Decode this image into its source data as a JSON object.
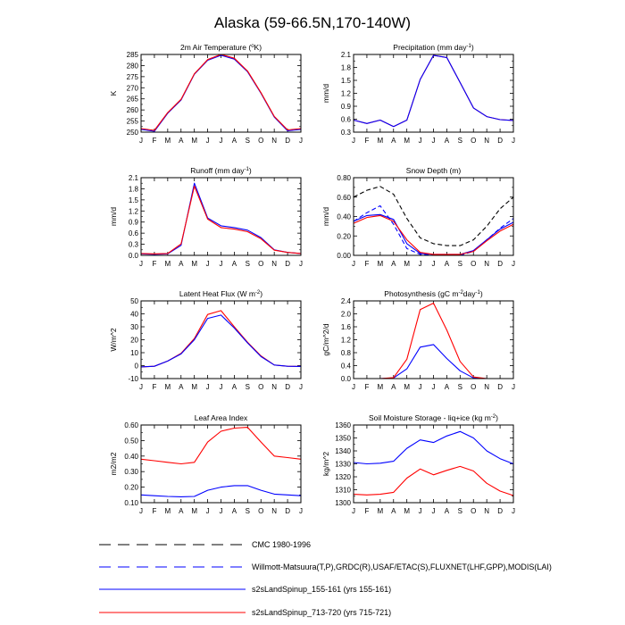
{
  "main_title": "Alaska (59-66.5N,170-140W)",
  "months": [
    "J",
    "F",
    "M",
    "A",
    "M",
    "J",
    "J",
    "A",
    "S",
    "O",
    "N",
    "D",
    "J"
  ],
  "legend": [
    {
      "label": "CMC 1980-1996",
      "color": "#000000",
      "style": "dashed"
    },
    {
      "label": "Willmott-Matsuura(T,P),GRDC(R),USAF/ETAC(S),FLUXNET(LHF,GPP),MODIS(LAI)",
      "color": "#0000ff",
      "style": "dashed"
    },
    {
      "label": "s2sLandSpinup_155-161 (yrs 155-161)",
      "color": "#0000ff",
      "style": "solid"
    },
    {
      "label": "s2sLandSpinup_713-720 (yrs 715-721)",
      "color": "#ff0000",
      "style": "solid"
    }
  ],
  "chart_data": [
    {
      "type": "line",
      "title": "2m Air Temperature (",
      "title_sup": "o",
      "title_tail": "K)",
      "ylabel": "K",
      "ylim": [
        250,
        285
      ],
      "yticks": [
        250,
        255,
        260,
        265,
        270,
        275,
        280,
        285
      ],
      "ytick_labels": [
        "250",
        "255",
        "260",
        "265",
        "270",
        "275",
        "280",
        "285"
      ],
      "series": [
        {
          "name": "s2sLandSpinup_155-161",
          "color": "#0000ff",
          "dash": "",
          "values": [
            251.2,
            250.4,
            258.5,
            264.5,
            276.1,
            282.4,
            284.6,
            282.9,
            277.2,
            267.5,
            256.8,
            250.6,
            251.2
          ]
        },
        {
          "name": "s2sLandSpinup_713-720",
          "color": "#ff0000",
          "dash": "",
          "values": [
            251.6,
            250.8,
            258.8,
            264.8,
            276.3,
            282.7,
            285.0,
            283.3,
            277.5,
            267.8,
            257.1,
            251.0,
            251.6
          ]
        }
      ]
    },
    {
      "type": "line",
      "title": "Precipitation (mm day",
      "title_sup": "-1",
      "title_tail": ")",
      "ylabel": "mm/d",
      "ylim": [
        0.3,
        2.1
      ],
      "yticks": [
        0.3,
        0.6,
        0.9,
        1.2,
        1.5,
        1.8,
        2.1
      ],
      "ytick_labels": [
        "0.3",
        "0.6",
        "0.9",
        "1.2",
        "1.5",
        "1.8",
        "2.1"
      ],
      "series": [
        {
          "name": "s2sLandSpinup_713-720",
          "color": "#ff0000",
          "dash": "",
          "values": [
            0.58,
            0.5,
            0.58,
            0.43,
            0.58,
            1.52,
            2.08,
            2.03,
            1.45,
            0.86,
            0.66,
            0.59,
            0.57
          ]
        },
        {
          "name": "s2sLandSpinup_155-161",
          "color": "#0000ff",
          "dash": "",
          "values": [
            0.58,
            0.5,
            0.58,
            0.43,
            0.58,
            1.52,
            2.08,
            2.03,
            1.45,
            0.86,
            0.66,
            0.59,
            0.57
          ]
        }
      ]
    },
    {
      "type": "line",
      "title": "Runoff (mm day",
      "title_sup": "-1",
      "title_tail": ")",
      "ylabel": "mm/d",
      "ylim": [
        0,
        2.1
      ],
      "yticks": [
        0,
        0.3,
        0.6,
        0.9,
        1.2,
        1.5,
        1.8,
        2.1
      ],
      "ytick_labels": [
        "0.0",
        "0.3",
        "0.6",
        "0.9",
        "1.2",
        "1.5",
        "1.8",
        "2.1"
      ],
      "series": [
        {
          "name": "s2sLandSpinup_155-161",
          "color": "#0000ff",
          "dash": "",
          "values": [
            0.04,
            0.03,
            0.04,
            0.27,
            1.95,
            1.01,
            0.8,
            0.75,
            0.68,
            0.48,
            0.15,
            0.08,
            0.05
          ]
        },
        {
          "name": "s2sLandSpinup_713-720",
          "color": "#ff0000",
          "dash": "",
          "values": [
            0.05,
            0.04,
            0.05,
            0.31,
            1.87,
            0.98,
            0.75,
            0.71,
            0.64,
            0.45,
            0.14,
            0.08,
            0.05
          ]
        }
      ]
    },
    {
      "type": "line",
      "title": "Snow Depth (m)",
      "title_sup": "",
      "title_tail": "",
      "ylabel": "mm/d",
      "ylim": [
        0,
        0.8
      ],
      "yticks": [
        0,
        0.2,
        0.4,
        0.6,
        0.8
      ],
      "ytick_labels": [
        "0.00",
        "0.20",
        "0.40",
        "0.60",
        "0.80"
      ],
      "series": [
        {
          "name": "CMC 1980-1996",
          "color": "#000000",
          "dash": "5,3",
          "values": [
            0.6,
            0.67,
            0.71,
            0.63,
            0.38,
            0.18,
            0.12,
            0.1,
            0.1,
            0.16,
            0.3,
            0.48,
            0.6
          ]
        },
        {
          "name": "Willmott-Matsuura",
          "color": "#0000ff",
          "dash": "5,3",
          "values": [
            0.35,
            0.44,
            0.51,
            0.32,
            0.07,
            0.01,
            0.0,
            0.0,
            0.0,
            0.04,
            0.16,
            0.28,
            0.38
          ]
        },
        {
          "name": "s2sLandSpinup_155-161",
          "color": "#0000ff",
          "dash": "",
          "values": [
            0.35,
            0.41,
            0.42,
            0.37,
            0.12,
            0.02,
            0.01,
            0.01,
            0.01,
            0.05,
            0.16,
            0.27,
            0.34
          ]
        },
        {
          "name": "s2sLandSpinup_713-720",
          "color": "#ff0000",
          "dash": "",
          "values": [
            0.33,
            0.39,
            0.41,
            0.35,
            0.16,
            0.03,
            0.01,
            0.01,
            0.01,
            0.04,
            0.15,
            0.25,
            0.32
          ]
        }
      ]
    },
    {
      "type": "line",
      "title": "Latent Heat Flux (W m",
      "title_sup": "-2",
      "title_tail": ")",
      "ylabel": "W/m^2",
      "ylim": [
        -10,
        50
      ],
      "yticks": [
        -10,
        0,
        10,
        20,
        30,
        40,
        50
      ],
      "ytick_labels": [
        "-10",
        "0",
        "10",
        "20",
        "30",
        "40",
        "50"
      ],
      "series": [
        {
          "name": "s2sLandSpinup_713-720",
          "color": "#ff0000",
          "dash": "",
          "values": [
            -1,
            -0.5,
            3.5,
            9.5,
            21,
            39.5,
            42.5,
            30,
            18,
            7.5,
            0.5,
            -0.5,
            -0.6
          ]
        },
        {
          "name": "s2sLandSpinup_155-161",
          "color": "#0000ff",
          "dash": "",
          "values": [
            -1,
            -0.5,
            3.5,
            9,
            20,
            36.5,
            39,
            29,
            17.5,
            7,
            0.5,
            -0.5,
            -0.6
          ]
        }
      ]
    },
    {
      "type": "line",
      "title": "Photosynthesis (gC m",
      "title_sup": "-2",
      "title_tail": "day",
      "title_sup2": "-1",
      "title_tail2": ")",
      "ylabel": "gC/m^2/d",
      "ylim": [
        0,
        2.4
      ],
      "yticks": [
        0,
        0.4,
        0.8,
        1.2,
        1.6,
        2.0,
        2.4
      ],
      "ytick_labels": [
        "0.0",
        "0.4",
        "0.8",
        "1.2",
        "1.6",
        "2.0",
        "2.4"
      ],
      "series": [
        {
          "name": "s2sLandSpinup_155-161",
          "color": "#0000ff",
          "dash": "",
          "values": [
            0,
            0,
            0,
            0.02,
            0.3,
            0.97,
            1.05,
            0.62,
            0.24,
            0.02,
            0,
            0,
            0
          ]
        },
        {
          "name": "s2sLandSpinup_713-720",
          "color": "#ff0000",
          "dash": "",
          "values": [
            0,
            0,
            0,
            0.03,
            0.6,
            2.13,
            2.33,
            1.5,
            0.53,
            0.05,
            0,
            0,
            0
          ]
        }
      ]
    },
    {
      "type": "line",
      "title": "Leaf Area Index",
      "title_sup": "",
      "title_tail": "",
      "ylabel": "m2/m2",
      "ylim": [
        0.1,
        0.6
      ],
      "yticks": [
        0.1,
        0.2,
        0.3,
        0.4,
        0.5,
        0.6
      ],
      "ytick_labels": [
        "0.10",
        "0.20",
        "0.30",
        "0.40",
        "0.50",
        "0.60"
      ],
      "series": [
        {
          "name": "s2sLandSpinup_713-720",
          "color": "#ff0000",
          "dash": "",
          "values": [
            0.38,
            0.37,
            0.36,
            0.35,
            0.36,
            0.49,
            0.56,
            0.58,
            0.585,
            0.49,
            0.4,
            0.39,
            0.38
          ]
        },
        {
          "name": "s2sLandSpinup_155-161",
          "color": "#0000ff",
          "dash": "",
          "values": [
            0.15,
            0.145,
            0.14,
            0.138,
            0.14,
            0.18,
            0.2,
            0.21,
            0.21,
            0.18,
            0.155,
            0.15,
            0.145
          ]
        }
      ]
    },
    {
      "type": "line",
      "title": "Soil Moisture Storage - liq+ice (kg m",
      "title_sup": "-2",
      "title_tail": ")",
      "ylabel": "kg/m^2",
      "ylim": [
        1300,
        1360
      ],
      "yticks": [
        1300,
        1310,
        1320,
        1330,
        1340,
        1350,
        1360
      ],
      "ytick_labels": [
        "1300",
        "1310",
        "1320",
        "1330",
        "1340",
        "1350",
        "1360"
      ],
      "series": [
        {
          "name": "s2sLandSpinup_155-161",
          "color": "#0000ff",
          "dash": "",
          "values": [
            1331,
            1330,
            1330.5,
            1332,
            1342,
            1348.5,
            1346.5,
            1351.5,
            1355,
            1350,
            1340,
            1334,
            1330
          ]
        },
        {
          "name": "s2sLandSpinup_713-720",
          "color": "#ff0000",
          "dash": "",
          "values": [
            1306.5,
            1306,
            1306.5,
            1308,
            1319,
            1326,
            1321.5,
            1325,
            1328,
            1324.5,
            1315,
            1309,
            1305.5
          ]
        }
      ]
    }
  ]
}
